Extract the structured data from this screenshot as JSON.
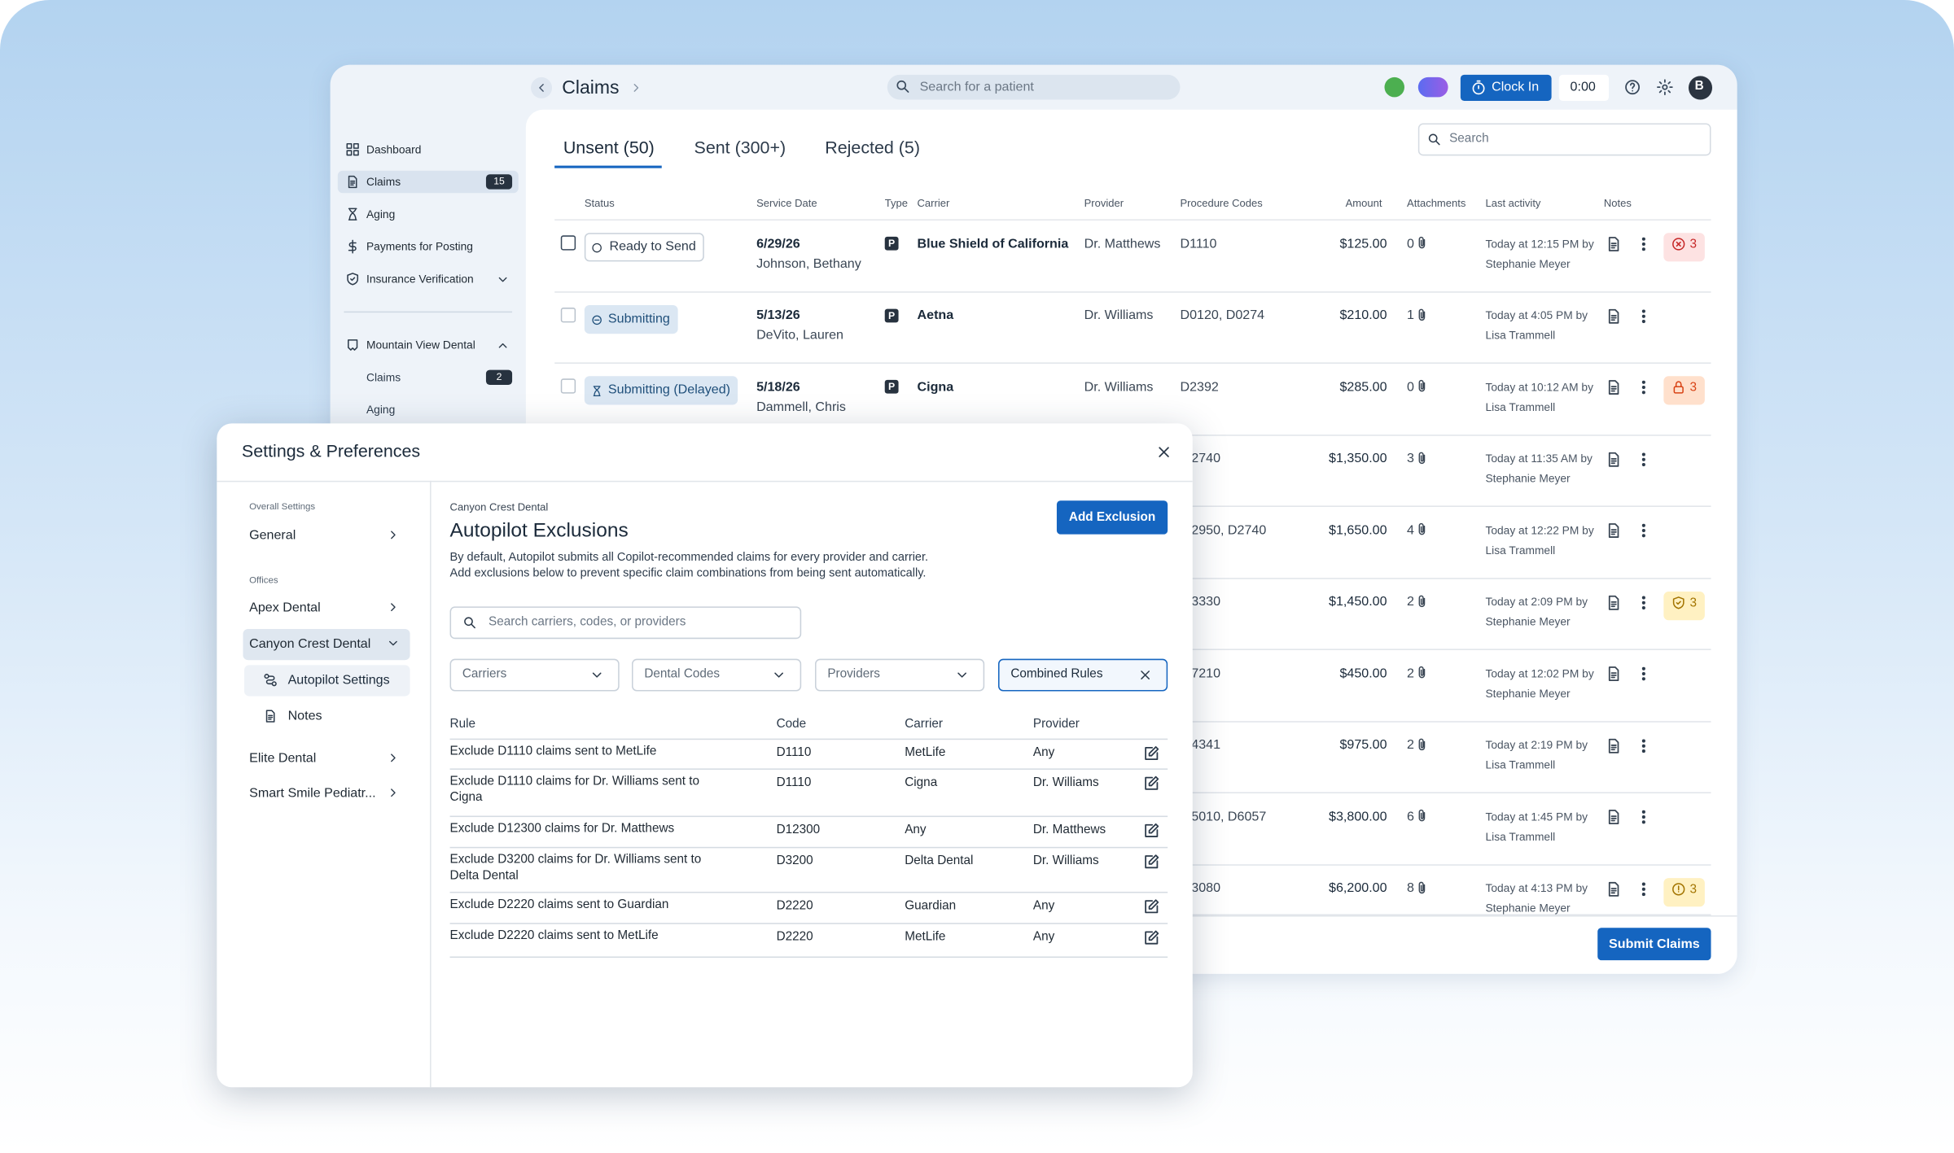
{
  "header": {
    "title": "Claims",
    "search_placeholder": "Search for a patient",
    "clock_in": "Clock In",
    "timer": "0:00",
    "avatar": "B"
  },
  "sidebar": {
    "items": [
      {
        "label": "Dashboard"
      },
      {
        "label": "Claims",
        "badge": 15
      },
      {
        "label": "Aging"
      },
      {
        "label": "Payments for Posting"
      },
      {
        "label": "Insurance Verification"
      }
    ],
    "office": "Mountain View Dental",
    "office_items": [
      {
        "label": "Claims",
        "badge": 2
      },
      {
        "label": "Aging"
      }
    ]
  },
  "claims": {
    "tabs": [
      "Unsent (50)",
      "Sent (300+)",
      "Rejected (5)"
    ],
    "search_placeholder": "Search",
    "columns": [
      "Status",
      "Service Date",
      "Type",
      "Carrier",
      "Provider",
      "Procedure Codes",
      "Amount",
      "Attachments",
      "Last activity",
      "Notes"
    ],
    "rows": [
      {
        "status": "Ready to Send",
        "service_date": "6/29/26",
        "patient": "Johnson, Bethany",
        "type": "P",
        "carrier": "Blue Shield of California",
        "provider": "Dr. Matthews",
        "codes": "D1110",
        "amount": "$125.00",
        "attachments": 0,
        "activity": "Today at 12:15 PM by",
        "user": "Stephanie Meyer",
        "alert": 3,
        "alert_style": "error"
      },
      {
        "status": "Submitting",
        "service_date": "5/13/26",
        "patient": "DeVito, Lauren",
        "type": "P",
        "carrier": "Aetna",
        "provider": "Dr. Williams",
        "codes": "D0120, D0274",
        "amount": "$210.00",
        "attachments": 1,
        "activity": "Today at 4:05 PM by",
        "user": "Lisa Trammell"
      },
      {
        "status": "Submitting (Delayed)",
        "service_date": "5/18/26",
        "patient": "Dammell, Chris",
        "type": "P",
        "carrier": "Cigna",
        "provider": "Dr. Williams",
        "codes": "D2392",
        "amount": "$285.00",
        "attachments": 0,
        "activity": "Today at 10:12 AM by",
        "user": "Lisa Trammell",
        "alert": 3,
        "alert_style": "locked"
      },
      {
        "codes": "2740",
        "amount": "$1,350.00",
        "attachments": 3,
        "activity": "Today at 11:35 AM by",
        "user": "Stephanie Meyer"
      },
      {
        "codes": "2950, D2740",
        "amount": "$1,650.00",
        "attachments": 4,
        "activity": "Today at 12:22 PM by",
        "user": "Lisa Trammell"
      },
      {
        "codes": "3330",
        "amount": "$1,450.00",
        "attachments": 2,
        "activity": "Today at 2:09 PM by",
        "user": "Stephanie Meyer",
        "alert": 3,
        "alert_style": "shield"
      },
      {
        "codes": "7210",
        "amount": "$450.00",
        "attachments": 2,
        "activity": "Today at 12:02 PM by",
        "user": "Stephanie Meyer"
      },
      {
        "codes": "4341",
        "amount": "$975.00",
        "attachments": 2,
        "activity": "Today at 2:19 PM by",
        "user": "Lisa Trammell"
      },
      {
        "codes": "5010, D6057",
        "amount": "$3,800.00",
        "attachments": 6,
        "activity": "Today at 1:45 PM by",
        "user": "Lisa Trammell"
      },
      {
        "codes": "3080",
        "amount": "$6,200.00",
        "attachments": 8,
        "activity": "Today at 4:13 PM by",
        "user": "Stephanie Meyer",
        "alert": 3,
        "alert_style": "warning"
      }
    ],
    "submit": "Submit Claims"
  },
  "modal": {
    "title": "Settings & Preferences",
    "nav": {
      "overall_heading": "Overall Settings",
      "general": "General",
      "offices_heading": "Offices",
      "offices": [
        "Apex Dental",
        "Canyon Crest Dental",
        "Elite Dental",
        "Smart Smile Pediatr..."
      ],
      "sub_items": [
        "Autopilot Settings",
        "Notes"
      ]
    },
    "office": "Canyon Crest Dental",
    "heading": "Autopilot Exclusions",
    "description": [
      "By default, Autopilot submits all Copilot-recommended claims for every provider and carrier.",
      "Add exclusions below to prevent specific claim combinations from being sent automatically."
    ],
    "add_button": "Add Exclusion",
    "search_placeholder": "Search carriers, codes, or providers",
    "filters": [
      "Carriers",
      "Dental Codes",
      "Providers",
      "Combined Rules"
    ],
    "table": {
      "columns": [
        "Rule",
        "Code",
        "Carrier",
        "Provider"
      ],
      "rows": [
        [
          "Exclude D1110 claims sent to MetLife",
          "D1110",
          "MetLife",
          "Any"
        ],
        [
          "Exclude D1110 claims for Dr. Williams sent to Cigna",
          "D1110",
          "Cigna",
          "Dr. Williams"
        ],
        [
          "Exclude D12300 claims for Dr. Matthews",
          "D12300",
          "Any",
          "Dr. Matthews"
        ],
        [
          "Exclude D3200 claims for Dr. Williams sent to Delta Dental",
          "D3200",
          "Delta Dental",
          "Dr. Williams"
        ],
        [
          "Exclude D2220 claims sent to Guardian",
          "D2220",
          "Guardian",
          "Any"
        ],
        [
          "Exclude D2220 claims sent to MetLife",
          "D2220",
          "MetLife",
          "Any"
        ]
      ]
    }
  }
}
